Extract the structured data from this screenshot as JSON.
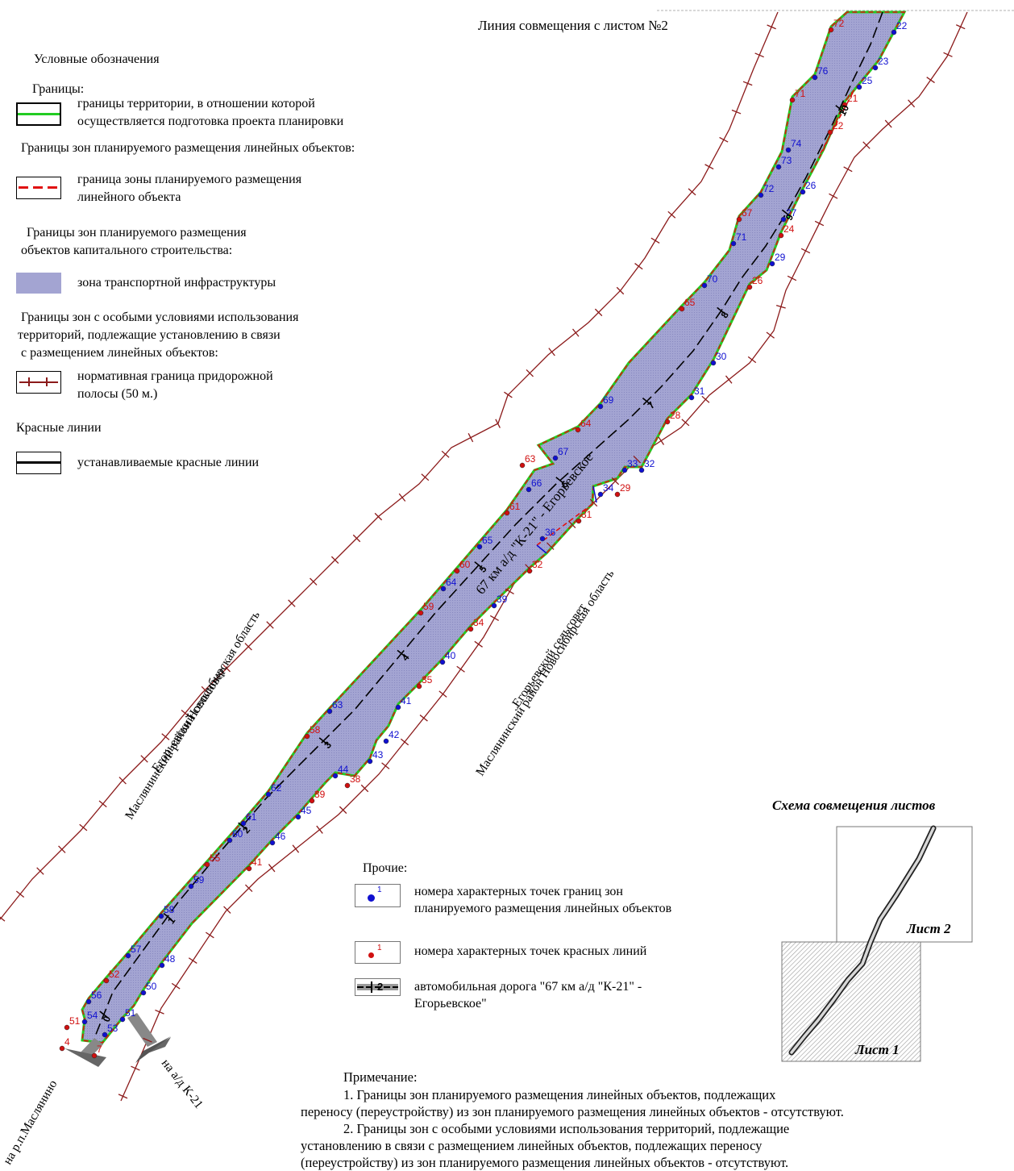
{
  "top_label": "Линия совмещения с листом №2",
  "legend": {
    "title": "Условные обозначения",
    "borders_header": "Границы:",
    "project_border_line1": "границы территории, в отношении которой",
    "project_border_line2": "осуществляется подготовка проекта планировки",
    "linear_zones_header": "Границы зон планируемого размещения линейных объектов:",
    "linear_zone_line1": "граница зоны планируемого размещения",
    "linear_zone_line2": "линейного объекта",
    "capital_header_line1": "Границы зон планируемого размещения",
    "capital_header_line2": "объектов капитального строительства:",
    "transport_zone": "зона транспортной инфраструктуры",
    "special_header_line1": "Границы зон с особыми условиями использования",
    "special_header_line2": "территорий, подлежащие установлению в связи",
    "special_header_line3": "с размещением линейных объектов:",
    "roadside_line1": "нормативная граница придорожной",
    "roadside_line2": "полосы (50 м.)",
    "red_lines_header": "Красные линии",
    "red_lines_item": "устанавливаемые красные линии"
  },
  "other_legend": {
    "header": "Прочие:",
    "blue_points": "номера характерных точек границ зон планируемого размещения линейных объектов",
    "red_points": "номера характерных точек красных линий",
    "road": "автомобильная дорога \"67 км а/д \"К-21\" - Егорьевское\"",
    "swatch_digit": "1",
    "road_swatch_digit": "2"
  },
  "map_labels": {
    "road_name": "67 км а/д \"К-21\" - Егорьевское",
    "left_council": "Егорьевский сельсовет",
    "left_district": "Маслянинский район Новосибирская область",
    "right_council": "Егорьевский сельсовет",
    "right_district": "Маслянинский район Новосибирская область",
    "direction_left": "на р.п.Маслянино",
    "direction_right": "на а/д К-21"
  },
  "km_marks": [
    "0",
    "1",
    "2",
    "3",
    "4",
    "5",
    "6",
    "7",
    "8",
    "9",
    "10"
  ],
  "blue_points": [
    {
      "n": "22",
      "pos": [
        1109,
        36
      ]
    },
    {
      "n": "23",
      "pos": [
        1086,
        80
      ]
    },
    {
      "n": "25",
      "pos": [
        1066,
        104
      ]
    },
    {
      "n": "76",
      "pos": [
        1011,
        92
      ]
    },
    {
      "n": "74",
      "pos": [
        978,
        182
      ]
    },
    {
      "n": "73",
      "pos": [
        966,
        203
      ]
    },
    {
      "n": "72",
      "pos": [
        944,
        238
      ]
    },
    {
      "n": "26",
      "pos": [
        996,
        234
      ]
    },
    {
      "n": "27",
      "pos": [
        972,
        268
      ]
    },
    {
      "n": "71",
      "pos": [
        910,
        298
      ]
    },
    {
      "n": "29",
      "pos": [
        958,
        323
      ]
    },
    {
      "n": "70",
      "pos": [
        874,
        350
      ]
    },
    {
      "n": "30",
      "pos": [
        885,
        446
      ]
    },
    {
      "n": "31",
      "pos": [
        858,
        489
      ]
    },
    {
      "n": "69",
      "pos": [
        745,
        500
      ]
    },
    {
      "n": "67",
      "pos": [
        689,
        564
      ]
    },
    {
      "n": "33",
      "pos": [
        775,
        579
      ]
    },
    {
      "n": "32",
      "pos": [
        796,
        579
      ]
    },
    {
      "n": "66",
      "pos": [
        656,
        603
      ]
    },
    {
      "n": "34",
      "pos": [
        745,
        609
      ]
    },
    {
      "n": "36",
      "pos": [
        673,
        664
      ]
    },
    {
      "n": "65",
      "pos": [
        595,
        674
      ]
    },
    {
      "n": "64",
      "pos": [
        550,
        726
      ]
    },
    {
      "n": "39",
      "pos": [
        613,
        747
      ]
    },
    {
      "n": "40",
      "pos": [
        549,
        817
      ]
    },
    {
      "n": "63",
      "pos": [
        409,
        878
      ]
    },
    {
      "n": "41",
      "pos": [
        494,
        873
      ]
    },
    {
      "n": "42",
      "pos": [
        479,
        915
      ]
    },
    {
      "n": "43",
      "pos": [
        459,
        940
      ]
    },
    {
      "n": "44",
      "pos": [
        416,
        958
      ]
    },
    {
      "n": "62",
      "pos": [
        333,
        981
      ]
    },
    {
      "n": "45",
      "pos": [
        370,
        1009
      ]
    },
    {
      "n": "61",
      "pos": [
        302,
        1017
      ]
    },
    {
      "n": "60",
      "pos": [
        285,
        1038
      ]
    },
    {
      "n": "46",
      "pos": [
        338,
        1041
      ]
    },
    {
      "n": "59",
      "pos": [
        237,
        1095
      ]
    },
    {
      "n": "58",
      "pos": [
        200,
        1132
      ]
    },
    {
      "n": "57",
      "pos": [
        159,
        1181
      ]
    },
    {
      "n": "48",
      "pos": [
        201,
        1193
      ]
    },
    {
      "n": "56",
      "pos": [
        110,
        1238
      ]
    },
    {
      "n": "50",
      "pos": [
        178,
        1227
      ]
    },
    {
      "n": "51",
      "pos": [
        152,
        1260
      ]
    },
    {
      "n": "54",
      "pos": [
        105,
        1263
      ]
    },
    {
      "n": "53",
      "pos": [
        130,
        1279
      ]
    }
  ],
  "red_points": [
    {
      "n": "72",
      "pos": [
        1031,
        33
      ]
    },
    {
      "n": "71",
      "pos": [
        983,
        120
      ]
    },
    {
      "n": "21",
      "pos": [
        1048,
        126
      ]
    },
    {
      "n": "22",
      "pos": [
        1030,
        160
      ]
    },
    {
      "n": "67",
      "pos": [
        917,
        268
      ]
    },
    {
      "n": "24",
      "pos": [
        969,
        288
      ]
    },
    {
      "n": "26",
      "pos": [
        930,
        352
      ]
    },
    {
      "n": "65",
      "pos": [
        846,
        379
      ]
    },
    {
      "n": "28",
      "pos": [
        828,
        519
      ]
    },
    {
      "n": "64",
      "pos": [
        717,
        529
      ]
    },
    {
      "n": "63",
      "pos": [
        648,
        573
      ]
    },
    {
      "n": "29",
      "pos": [
        766,
        609
      ]
    },
    {
      "n": "61",
      "pos": [
        629,
        632
      ]
    },
    {
      "n": "31",
      "pos": [
        718,
        642
      ]
    },
    {
      "n": "60",
      "pos": [
        567,
        704
      ]
    },
    {
      "n": "32",
      "pos": [
        657,
        704
      ]
    },
    {
      "n": "59",
      "pos": [
        522,
        756
      ]
    },
    {
      "n": "34",
      "pos": [
        584,
        776
      ]
    },
    {
      "n": "35",
      "pos": [
        520,
        847
      ]
    },
    {
      "n": "58",
      "pos": [
        381,
        909
      ]
    },
    {
      "n": "38",
      "pos": [
        431,
        970
      ]
    },
    {
      "n": "39",
      "pos": [
        387,
        989
      ]
    },
    {
      "n": "55",
      "pos": [
        257,
        1068
      ]
    },
    {
      "n": "41",
      "pos": [
        309,
        1073
      ]
    },
    {
      "n": "52",
      "pos": [
        132,
        1212
      ]
    },
    {
      "n": "51",
      "pos": [
        83,
        1270
      ]
    },
    {
      "n": "4",
      "pos": [
        77,
        1296
      ]
    },
    {
      "n": "7",
      "pos": [
        117,
        1305
      ]
    }
  ],
  "scheme": {
    "title": "Схема совмещения листов",
    "sheet2": "Лист 2",
    "sheet1": "Лист 1"
  },
  "note": {
    "title": "Примечание:",
    "p1_line1": "1. Границы зон планируемого размещения линейных объектов, подлежащих",
    "p1_line2": "переносу (переустройству) из зон планируемого размещения линейных объектов - отсутствуют.",
    "p2_line1": "2. Границы зон с особыми условиями использования территорий, подлежащие",
    "p2_line2": "установлению в связи с размещением линейных объектов, подлежащих переносу",
    "p2_line3": "(переустройству) из зон планируемого размещения линейных объектов - отсутствуют."
  },
  "colors": {
    "zone_fill": "#9fa0cf",
    "project_border": "#22cc22",
    "zone_border": "#e01010",
    "red_line": "#000000",
    "roadside": "#8b1a1a",
    "blue_point": "#1010d0",
    "red_point": "#d01010"
  }
}
